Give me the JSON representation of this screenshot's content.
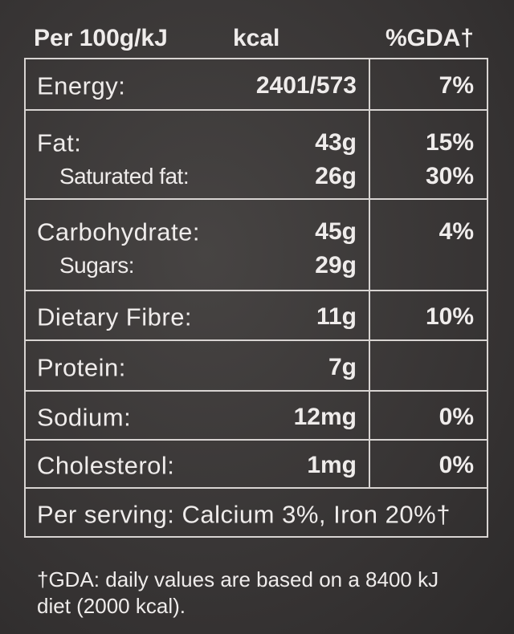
{
  "header": {
    "per": "Per 100g/kJ",
    "kcal": "kcal",
    "gda": "%GDA†"
  },
  "table": {
    "rows": [
      [
        [
          "Energy:",
          "2401/573",
          "7%"
        ]
      ],
      [
        [
          "Fat:",
          "43g",
          "15%"
        ],
        [
          "Saturated fat:",
          "26g",
          "30%"
        ]
      ],
      [
        [
          "Carbohydrate:",
          "45g",
          "4%"
        ],
        [
          "Sugars:",
          "29g"
        ]
      ],
      [
        [
          "Dietary Fibre:",
          "11g",
          "10%"
        ]
      ],
      [
        [
          "Protein:",
          "7g"
        ]
      ],
      [
        [
          "Sodium:",
          "12mg",
          "0%"
        ]
      ],
      [
        [
          "Cholesterol:",
          "1mg",
          "0%"
        ]
      ]
    ],
    "footer": "Per serving: Calcium 3%, Iron 20%†"
  },
  "footnote": "†GDA: daily values are based on a 8400 kJ diet (2000 kcal)."
}
